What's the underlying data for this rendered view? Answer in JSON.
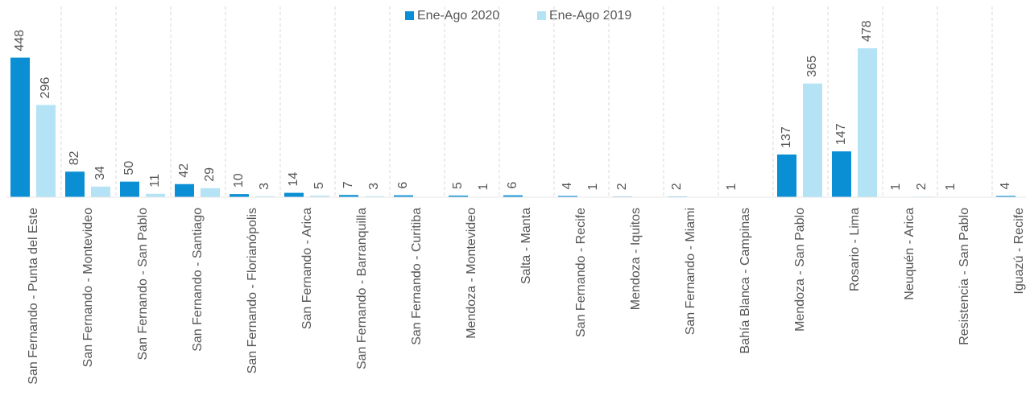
{
  "chart_data": {
    "type": "bar",
    "categories": [
      "San Fernando - Punta del Este",
      "San Fernando - Montevideo",
      "San Fernando - San Pablo",
      "San Fernando - Santiago",
      "San Fernando - Florianópolis",
      "San Fernando - Arica",
      "San Fernando - Barranquilla",
      "San Fernando - Curitiba",
      "Mendoza - Montevideo",
      "Salta - Manta",
      "San Fernando - Recife",
      "Mendoza - Iquitos",
      "San Fernando - Miami",
      "Bahía Blanca - Campinas",
      "Mendoza - San Pablo",
      "Rosario - Lima",
      "Neuquén - Arica",
      "Resistencia - San Pablo",
      "Iguazú - Recife"
    ],
    "series": [
      {
        "name": "Ene-Ago 2020",
        "color": "#0a8fd4",
        "values": [
          448,
          82,
          50,
          42,
          10,
          14,
          7,
          6,
          5,
          6,
          4,
          2,
          2,
          1,
          137,
          147,
          1,
          1,
          4
        ]
      },
      {
        "name": "Ene-Ago 2019",
        "color": "#b5e3f6",
        "values": [
          296,
          34,
          11,
          29,
          3,
          5,
          3,
          null,
          1,
          null,
          1,
          null,
          null,
          null,
          365,
          478,
          2,
          null,
          null
        ]
      }
    ],
    "legend": "top"
  }
}
